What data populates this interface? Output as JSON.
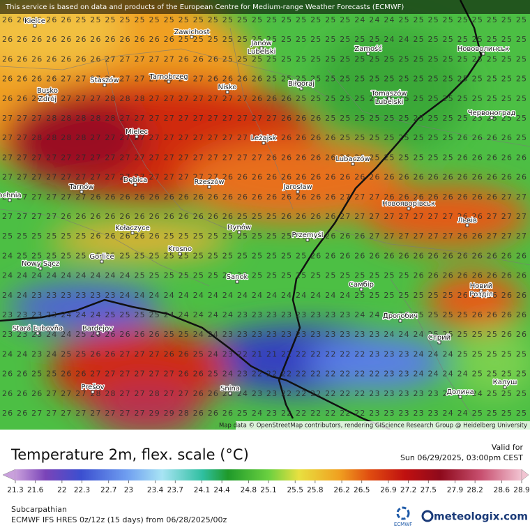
{
  "header": {
    "notice": "This service is based on data and products of the European Centre for Medium-range Weather Forecasts (ECMWF)"
  },
  "map": {
    "rows": [
      "26 26 26 26 26 25 25 25 25 25 25 25 25 25 25 25 25 25 25 25 25 25 25 25 24 24 24 25 25 25 25 25 25 25 25 25",
      "26 26 26 26 26 26 26 26 26 26 26 26 25 25 25 25 25 25 25 25 25 25 25 25 25 25 24 24 25 25 25 25 25 25 25 25",
      "26 26 26 26 26 26 26 27 27 27 27 27 26 26 26 25 25 25 25 25 25 25 25 25 25 25 25 25 25 25 25 25 25 25 25 25",
      "26 26 26 26 27 27 27 27 27 27 27 27 27 27 26 26 26 26 25 25 25 25 25 25 25 25 25 25 25 25 25 25 25 25 25 25",
      "26 26 26 27 27 27 27 28 28 28 27 27 27 27 27 27 27 26 26 26 25 25 25 25 25 25 25 25 25 25 25 25 25 25 25 25",
      "27 27 27 28 28 28 28 28 27 27 27 27 27 27 27 27 27 27 27 26 26 26 25 25 25 25 25 25 25 25 25 25 25 25 25 25",
      "27 27 28 28 28 28 27 27 27 27 27 27 27 27 27 27 27 27 26 26 26 26 26 25 25 25 25 25 25 25 25 26 26 26 26 25",
      "27 27 27 27 27 27 27 27 27 27 27 27 27 27 27 27 27 27 26 26 26 26 26 26 25 25 25 25 25 25 25 26 26 26 26 26",
      "27 27 27 27 27 27 27 27 27 27 27 27 27 27 27 26 26 26 26 26 26 26 26 26 26 26 26 26 26 26 26 26 26 26 26 26",
      "27 27 27 27 27 27 26 26 26 26 26 26 26 26 26 26 26 26 26 26 26 26 26 27 27 27 26 26 26 26 26 26 26 26 27 27",
      "27 27 27 27 26 26 26 26 26 26 26 26 26 26 26 26 25 25 25 26 26 26 26 27 27 27 27 27 27 27 27 26 26 27 27 27",
      "25 25 25 25 25 25 26 26 26 26 26 25 25 25 25 25 25 25 25 25 26 26 26 26 26 27 27 27 27 27 27 26 26 27 27 27",
      "24 25 25 25 25 25 25 25 25 25 25 25 25 25 25 25 25 25 25 25 25 26 26 26 26 26 26 26 26 26 26 26 26 26 26 26",
      "24 24 24 24 24 24 24 24 24 25 25 25 25 25 25 25 25 25 25 25 25 25 25 25 25 25 25 25 26 26 26 26 26 26 26 26",
      "24 24 23 23 23 23 23 23 24 24 24 24 24 24 24 24 24 24 24 24 24 24 24 24 25 25 25 25 25 25 25 26 26 26 26 26",
      "23 23 23 23 24 24 24 25 25 25 25 24 24 24 24 24 23 23 23 23 23 23 23 23 24 24 25 25 25 25 25 25 26 26 26 26",
      "23 23 23 24 24 25 26 26 26 26 26 25 25 24 24 23 23 23 23 23 23 23 23 23 23 23 24 24 24 25 25 25 25 25 26 26",
      "24 24 23 24 25 25 26 26 27 27 27 26 26 25 24 23 22 21 21 22 22 22 22 22 22 23 23 23 24 24 24 25 25 25 25 25",
      "26 26 25 25 26 26 27 27 27 27 27 27 26 26 25 24 23 22 22 22 22 22 22 22 22 22 23 23 24 24 24 24 25 25 25 25",
      "26 26 26 27 27 27 28 28 27 27 28 27 27 26 26 25 24 23 23 22 22 22 22 22 22 23 23 23 23 23 24 24 24 25 25 25",
      "26 26 27 27 27 27 27 27 27 27 29 29 28 26 26 26 25 24 23 22 22 22 22 22 22 23 23 23 23 23 24 24 25 25 25 25"
    ],
    "cities": [
      {
        "lines": [
          "Kielce"
        ]
      },
      {
        "lines": [
          "Zawichost"
        ]
      },
      {
        "lines": [
          "Janów",
          "Lubelski"
        ]
      },
      {
        "lines": [
          "Zamość"
        ]
      },
      {
        "lines": [
          "Нововолинськ"
        ]
      },
      {
        "lines": [
          "Staszów"
        ]
      },
      {
        "lines": [
          "Tarnobrzeg"
        ]
      },
      {
        "lines": [
          "Nisko"
        ]
      },
      {
        "lines": [
          "Biłgoraj"
        ]
      },
      {
        "lines": [
          "Busko",
          "Zdrój"
        ]
      },
      {
        "lines": [
          "Tomaszów",
          "Lubelski"
        ]
      },
      {
        "lines": [
          "Червоноград"
        ]
      },
      {
        "lines": [
          "Mielec"
        ]
      },
      {
        "lines": [
          "Leżajsk"
        ]
      },
      {
        "lines": [
          "Lubaczów"
        ]
      },
      {
        "lines": [
          "Tarnów"
        ]
      },
      {
        "lines": [
          "Dębica"
        ]
      },
      {
        "lines": [
          "Rzeszów"
        ]
      },
      {
        "lines": [
          "Jarosław"
        ]
      },
      {
        "lines": [
          "ochnia"
        ]
      },
      {
        "lines": [
          "Новояворівськ"
        ]
      },
      {
        "lines": [
          "Львів"
        ]
      },
      {
        "lines": [
          "Kołaczyce"
        ]
      },
      {
        "lines": [
          "Dynów"
        ]
      },
      {
        "lines": [
          "Przemyśl"
        ]
      },
      {
        "lines": [
          "Krosno"
        ]
      },
      {
        "lines": [
          "Gorlice"
        ]
      },
      {
        "lines": [
          "Nowy Sącz"
        ]
      },
      {
        "lines": [
          "Sanok"
        ]
      },
      {
        "lines": [
          "Самбір"
        ]
      },
      {
        "lines": [
          "Новий",
          "Розділ"
        ]
      },
      {
        "lines": [
          "Дрогобич"
        ]
      },
      {
        "lines": [
          "Стрий"
        ]
      },
      {
        "lines": [
          "Stará Ľubovňa"
        ]
      },
      {
        "lines": [
          "Bardejov"
        ]
      },
      {
        "lines": [
          "Prešov"
        ]
      },
      {
        "lines": [
          "Snina"
        ]
      },
      {
        "lines": [
          "Калуш"
        ]
      },
      {
        "lines": [
          "Долина"
        ]
      }
    ],
    "attribution": "Map data © OpenStreetMap contributors, rendering GIScience Research Group @ Heidelberg University"
  },
  "title": "Temperature 2m, flex. scale (°C)",
  "valid": {
    "label": "Valid for",
    "time": "Sun 06/29/2025, 03:00pm CEST"
  },
  "legend": {
    "ticks": [
      21.3,
      21.6,
      22,
      22.3,
      22.7,
      23,
      23.4,
      23.7,
      24.1,
      24.4,
      24.8,
      25.1,
      25.5,
      25.8,
      26.2,
      26.5,
      26.9,
      27.2,
      27.5,
      27.9,
      28.2,
      28.6,
      28.9
    ]
  },
  "footer": {
    "region": "Subcarpathian",
    "model": "ECMWF IFS HRES 0z/12z (15 days) from 06/28/2025/00z",
    "ecmwf": "ECMWF",
    "brand": "meteologix.com"
  }
}
